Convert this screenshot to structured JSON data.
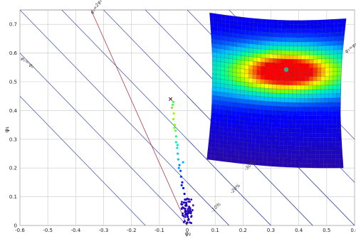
{
  "chart_data": {
    "type": "scatter",
    "title": "",
    "xlabel": "φ₂",
    "ylabel": "φ₁",
    "xlim": [
      -0.6,
      0.6
    ],
    "ylim": [
      0,
      0.75
    ],
    "x_ticks": [
      "-0.6",
      "-0.5",
      "-0.4",
      "-0.3",
      "-0.2",
      "-0.1",
      "0",
      "0.1",
      "0.2",
      "0.3",
      "0.4",
      "0.5",
      "0.6"
    ],
    "y_ticks": [
      "0",
      "0.1",
      "0.2",
      "0.3",
      "0.4",
      "0.5",
      "0.6",
      "0.7"
    ],
    "grid": true,
    "colors": {
      "grid": "#c8c8c8",
      "blue_line": "#3b4aa8",
      "red_line": "#b03a48",
      "marker": "#5a1a1a",
      "colormap": [
        "#3a0a8c",
        "#0000ff",
        "#00bfff",
        "#00ffa0",
        "#80ff00",
        "#ffff00",
        "#ff8000",
        "#ff0000"
      ]
    },
    "diagonal_lines": [
      {
        "label": "-10%",
        "intercept": 0.15
      },
      {
        "label": "-20%",
        "intercept": 0.3
      },
      {
        "label": "-30%",
        "intercept": 0.45
      },
      {
        "label": "",
        "intercept": 0.6
      },
      {
        "label": "",
        "intercept": 0.75
      },
      {
        "label": "",
        "intercept": 0.9
      }
    ],
    "edge_annotations": [
      {
        "text": "φ₁=2φ₂",
        "pos": "top"
      },
      {
        "text": "φ₁=-φ₂",
        "pos": "left"
      },
      {
        "text": "φ₁=φ₂",
        "pos": "right"
      }
    ],
    "red_line": {
      "from": [
        -0.345,
        0.75
      ],
      "to": [
        0.0,
        0.0
      ]
    },
    "marker_x": {
      "x": -0.06,
      "y": 0.44,
      "symbol": "×"
    },
    "trail": [
      [
        -0.05,
        0.43,
        0.55
      ],
      [
        -0.055,
        0.41,
        0.62
      ],
      [
        -0.048,
        0.39,
        0.7
      ],
      [
        -0.05,
        0.37,
        0.68
      ],
      [
        -0.045,
        0.35,
        0.66
      ],
      [
        -0.042,
        0.33,
        0.6
      ],
      [
        -0.04,
        0.31,
        0.52
      ],
      [
        -0.04,
        0.29,
        0.48
      ],
      [
        -0.036,
        0.27,
        0.42
      ],
      [
        -0.034,
        0.25,
        0.38
      ],
      [
        -0.032,
        0.23,
        0.34
      ],
      [
        -0.028,
        0.21,
        0.28
      ],
      [
        -0.024,
        0.19,
        0.24
      ],
      [
        -0.022,
        0.17,
        0.22
      ],
      [
        -0.018,
        0.15,
        0.2
      ],
      [
        -0.014,
        0.13,
        0.18
      ],
      [
        -0.01,
        0.11,
        0.15
      ],
      [
        -0.008,
        0.09,
        0.12
      ],
      [
        -0.006,
        0.07,
        0.1
      ],
      [
        -0.004,
        0.05,
        0.08
      ],
      [
        0.0,
        0.04,
        0.06
      ],
      [
        0.002,
        0.03,
        0.05
      ],
      [
        0.005,
        0.02,
        0.04
      ],
      [
        0.0,
        0.01,
        0.02
      ],
      [
        -0.03,
        0.2,
        0.3
      ],
      [
        -0.015,
        0.22,
        0.32
      ],
      [
        -0.02,
        0.14,
        0.2
      ],
      [
        0.01,
        0.06,
        0.08
      ],
      [
        -0.035,
        0.28,
        0.46
      ],
      [
        -0.046,
        0.34,
        0.64
      ],
      [
        -0.052,
        0.42,
        0.6
      ],
      [
        -0.012,
        0.08,
        0.1
      ]
    ],
    "surface": {
      "corners": {
        "top_left": [
          0.08,
          0.74
        ],
        "top_right": [
          0.57,
          0.72
        ],
        "bottom_right": [
          0.56,
          0.2
        ],
        "bottom_left": [
          0.07,
          0.23
        ]
      },
      "peak": [
        0.355,
        0.535
      ],
      "peak_color": "#3fa88a"
    }
  }
}
